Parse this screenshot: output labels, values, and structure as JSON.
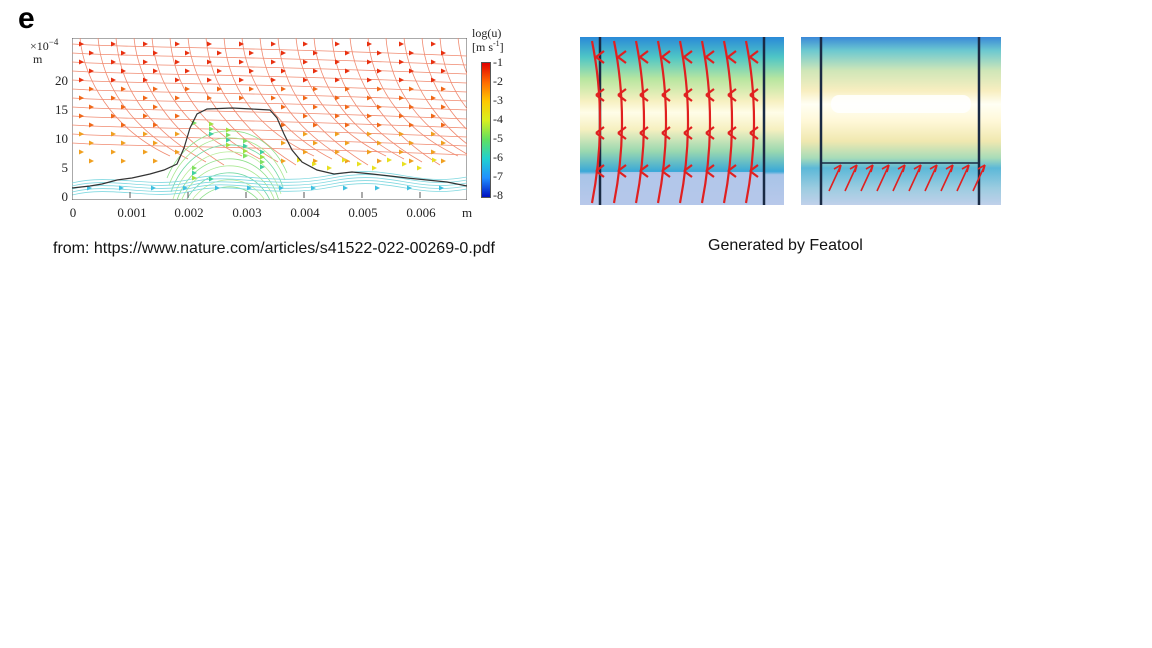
{
  "left_figure": {
    "panel_letter": "e",
    "y_scale": "×10",
    "y_exponent": "−4",
    "y_unit": "m",
    "x_unit": "m",
    "y_ticks": [
      "20",
      "15",
      "10",
      "5",
      "0"
    ],
    "x_ticks": [
      "0",
      "0.001",
      "0.002",
      "0.003",
      "0.004",
      "0.005",
      "0.006"
    ],
    "colorbar_title": "log(u)",
    "colorbar_unit_base": "[m s",
    "colorbar_unit_exp": "-1",
    "colorbar_unit_close": "]",
    "colorbar_ticks": [
      "-1",
      "-2",
      "-3",
      "-4",
      "-5",
      "-6",
      "-7",
      "-8"
    ],
    "colorbar_colors": [
      "#e00000",
      "#ff6a00",
      "#ffc800",
      "#d8f020",
      "#60e060",
      "#20d0d0",
      "#2090ff",
      "#0010c0"
    ],
    "source_caption": "from: https://www.nature.com/articles/s41522-022-00269-0.pdf"
  },
  "right_figures": {
    "caption": "Generated by Featool"
  }
}
